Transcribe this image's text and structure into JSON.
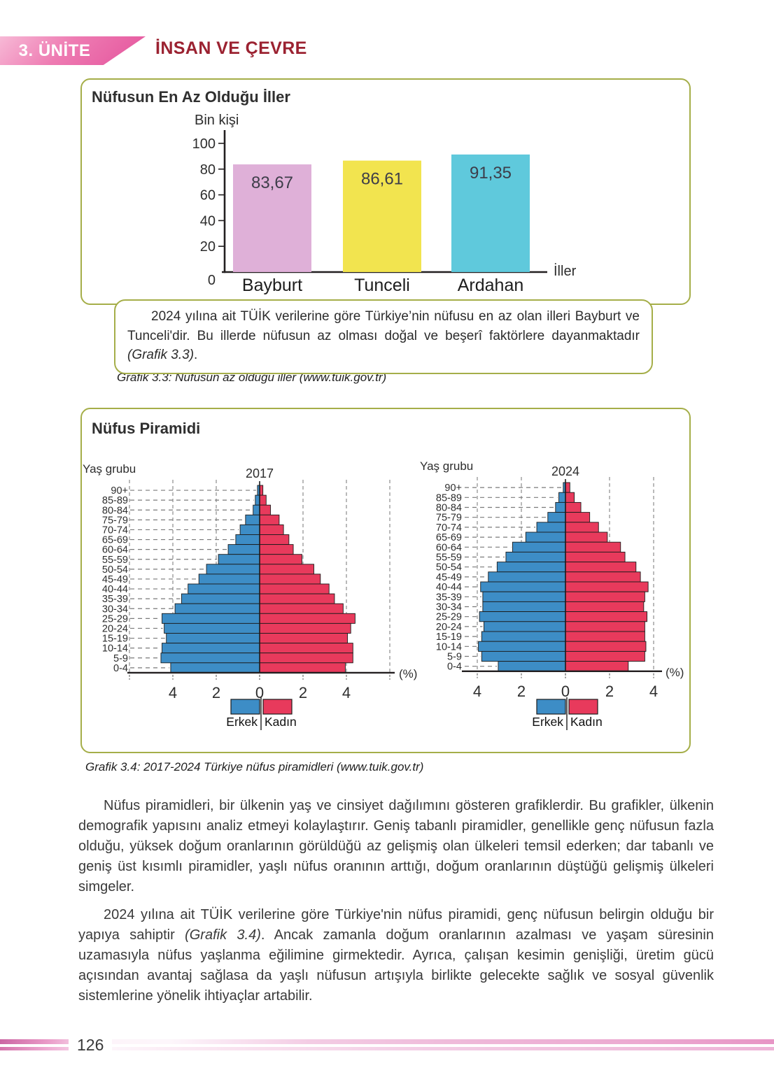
{
  "header": {
    "unit_badge": "3. ÜNİTE",
    "chapter_title": "İNSAN VE ÇEVRE"
  },
  "bar_chart_box": {
    "title": "Nüfusun En Az Olduğu İller",
    "note": {
      "before": "2024 yılına ait TÜİK verilerine göre Türkiye’nin nüfusu en az olan illeri Bayburt ve Tunceli'dir. Bu illerde nüfusun az olması doğal ve beşerî faktörlere dayanmaktadır ",
      "italic": "(Grafik 3.3)",
      "after": "."
    },
    "caption": "Grafik 3.3: Nüfusun az olduğu iller (www.tuik.gov.tr)"
  },
  "pyramid_box": {
    "title": "Nüfus Piramidi",
    "caption": "Grafik 3.4: 2017-2024 Türkiye nüfus piramidleri (www.tuik.gov.tr)"
  },
  "paragraphs": {
    "p1": "Nüfus piramidleri, bir ülkenin yaş ve cinsiyet dağılımını gösteren grafiklerdir. Bu grafikler, ülkenin demografik yapısını analiz etmeyi kolaylaştırır. Geniş tabanlı piramidler, genellikle genç nüfusun fazla olduğu, yüksek doğum oranlarının görüldüğü az gelişmiş olan ülkeleri temsil ederken; dar tabanlı ve geniş üst kısımlı piramidler, yaşlı nüfus oranının arttığı, doğum oranlarının düştüğü gelişmiş ülkeleri simgeler.",
    "p2_before": "2024 yılına ait TÜİK verilerine göre Türkiye'nin nüfus piramidi, genç nüfusun belirgin olduğu bir yapıya sahiptir ",
    "p2_italic": "(Grafik 3.4)",
    "p2_after": ". Ancak zamanla doğum oranlarının azalması ve yaşam süresinin uzamasıyla nüfus yaşlanma eğilimine girmektedir. Ayrıca, çalışan kesimin genişliği, üretim gücü açısından avantaj sağlasa da yaşlı nüfusun artışıyla birlikte gelecekte sağlık ve sosyal güvenlik sistemlerine yönelik ihtiyaçlar artabilir."
  },
  "footer": {
    "page_number": "126"
  },
  "theme": {
    "box_border": "#a5ae49",
    "ribbon_pink": "#e4539c",
    "chapter_title_red": "#9b2231",
    "footer_stripe_pink": "#e798c6"
  },
  "chart_data": [
    {
      "type": "bar",
      "title": "Nüfusun En Az Olduğu İller",
      "ylabel": "Bin kişi",
      "xlabel": "İller",
      "categories": [
        "Bayburt",
        "Tunceli",
        "Ardahan"
      ],
      "values": [
        83.67,
        86.61,
        91.35
      ],
      "value_labels": [
        "83,67",
        "86,61",
        "91,35"
      ],
      "bar_colors": [
        "#dfb0d8",
        "#f2e44f",
        "#5fc9dc"
      ],
      "yticks": [
        0,
        20,
        40,
        60,
        80,
        100
      ],
      "ylim": [
        0,
        100
      ],
      "grid": false
    },
    {
      "type": "bar",
      "subtype": "population-pyramid",
      "title": "2017",
      "ylabel": "Yaş grubu",
      "xlabel": "(%)",
      "age_groups": [
        "90+",
        "85-89",
        "80-84",
        "75-79",
        "70-74",
        "65-69",
        "60-64",
        "55-59",
        "50-54",
        "45-49",
        "40-44",
        "35-39",
        "30-34",
        "25-29",
        "20-24",
        "15-19",
        "10-14",
        "5-9",
        "0-4"
      ],
      "series": [
        {
          "name": "Erkek",
          "color": "#3d8dc6",
          "values": [
            0.1,
            0.2,
            0.3,
            0.65,
            0.9,
            1.1,
            1.45,
            1.9,
            2.45,
            2.8,
            3.3,
            3.6,
            3.9,
            4.5,
            4.4,
            4.3,
            4.5,
            4.55,
            4.1
          ]
        },
        {
          "name": "Kadın",
          "color": "#e83a5c",
          "values": [
            0.15,
            0.3,
            0.5,
            0.9,
            1.1,
            1.35,
            1.55,
            1.95,
            2.5,
            2.8,
            3.2,
            3.45,
            3.85,
            4.4,
            4.2,
            4.05,
            4.3,
            4.3,
            3.95
          ]
        }
      ],
      "xticks": [
        4,
        2,
        0,
        2,
        4
      ],
      "xmax": 6,
      "legend_position": "bottom-center"
    },
    {
      "type": "bar",
      "subtype": "population-pyramid",
      "title": "2024",
      "ylabel": "Yaş grubu",
      "xlabel": "(%)",
      "age_groups": [
        "90+",
        "85-89",
        "80-84",
        "75-79",
        "70-74",
        "65-69",
        "60-64",
        "55-59",
        "50-54",
        "45-49",
        "40-44",
        "35-39",
        "30-34",
        "25-29",
        "20-24",
        "15-19",
        "10-14",
        "5-9",
        "0-4"
      ],
      "series": [
        {
          "name": "Erkek",
          "color": "#3d8dc6",
          "values": [
            0.1,
            0.3,
            0.45,
            0.8,
            1.3,
            1.8,
            2.4,
            2.7,
            3.1,
            3.5,
            3.85,
            3.75,
            3.75,
            3.9,
            3.7,
            3.8,
            3.95,
            3.8,
            3.05
          ]
        },
        {
          "name": "Kadın",
          "color": "#e83a5c",
          "values": [
            0.2,
            0.4,
            0.7,
            1.1,
            1.5,
            1.9,
            2.5,
            2.7,
            3.2,
            3.4,
            3.75,
            3.6,
            3.55,
            3.7,
            3.6,
            3.6,
            3.65,
            3.6,
            2.85
          ]
        }
      ],
      "xticks": [
        4,
        2,
        0,
        2,
        4
      ],
      "xmax": 4.3,
      "legend_position": "bottom-center"
    }
  ]
}
